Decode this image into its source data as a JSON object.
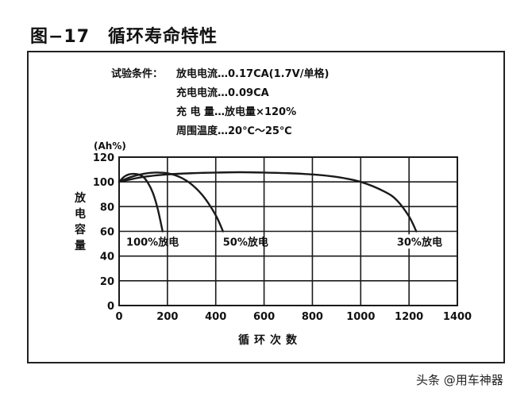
{
  "figure_title": "图−17　循环寿命特性",
  "conditions": {
    "label": "试验条件：",
    "lines": [
      "放电电流…0.17CA(1.7V/单格)",
      "充电电流…0.09CA",
      "充 电 量…放电量×120%",
      "周围温度…20℃～25℃"
    ]
  },
  "watermark": "头条 @用车神器",
  "chart_data": {
    "type": "line",
    "title": "",
    "xlabel": "循环次数",
    "ylabel": "放电容量",
    "ylabel_chars": [
      "放",
      "电",
      "容",
      "量"
    ],
    "yunit": "(Ah%)",
    "xlim": [
      0,
      1400
    ],
    "ylim": [
      0,
      120
    ],
    "x_ticks": [
      0,
      200,
      400,
      600,
      800,
      1000,
      1200,
      1400
    ],
    "y_ticks": [
      0,
      20,
      40,
      60,
      80,
      100,
      120
    ],
    "grid": true,
    "colors": {
      "line": "#1a1a1a",
      "grid": "#1a1a1a"
    },
    "series": [
      {
        "name": "100%放电",
        "x": [
          0,
          20,
          40,
          60,
          80,
          100,
          120,
          140,
          160,
          180
        ],
        "y": [
          100,
          104,
          106,
          106.5,
          106,
          104,
          99,
          91,
          78,
          60
        ]
      },
      {
        "name": "50%放电",
        "x": [
          0,
          50,
          100,
          150,
          200,
          250,
          300,
          350,
          400,
          430
        ],
        "y": [
          100,
          104,
          106.5,
          107.5,
          107,
          104,
          98,
          88,
          73,
          60
        ]
      },
      {
        "name": "30%放电",
        "x": [
          0,
          100,
          200,
          300,
          400,
          500,
          600,
          700,
          800,
          900,
          1000,
          1100,
          1150,
          1200,
          1230
        ],
        "y": [
          100,
          104,
          106,
          107,
          107.5,
          107.8,
          107.5,
          107,
          106,
          104,
          100,
          92,
          85,
          72,
          60
        ]
      }
    ],
    "annotations": [
      {
        "text": "100%放电",
        "x": 10,
        "y": 55
      },
      {
        "text": "50%放电",
        "x": 410,
        "y": 55
      },
      {
        "text": "30%放电",
        "x": 1130,
        "y": 55
      }
    ]
  }
}
